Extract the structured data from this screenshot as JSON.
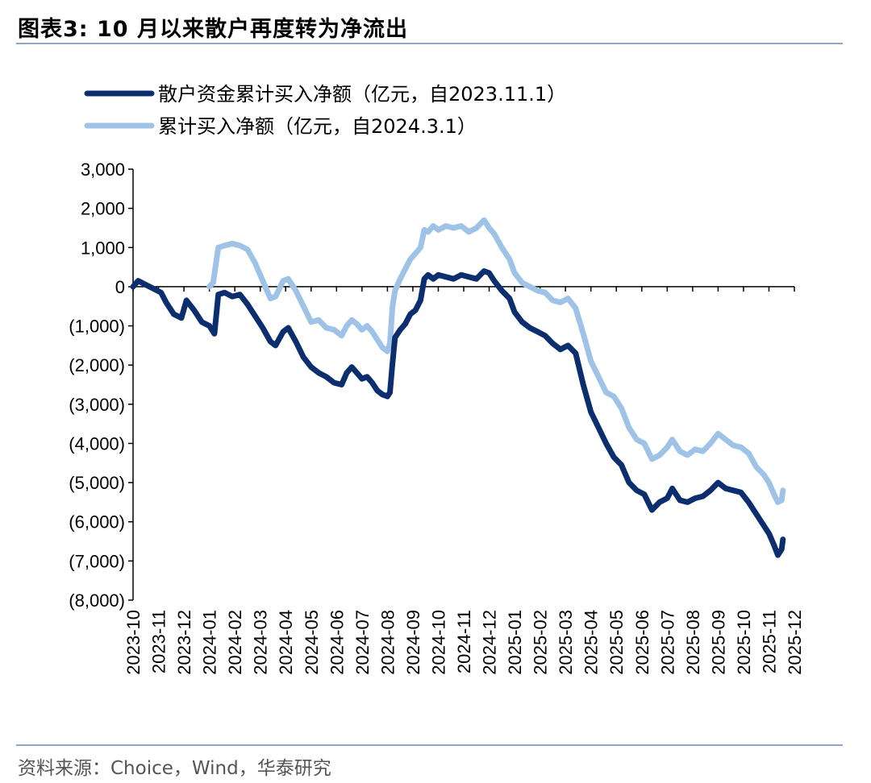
{
  "figure": {
    "title": "图表3:  10 月以来散户再度转为净流出",
    "source": "资料来源：Choice，Wind，华泰研究"
  },
  "colors": {
    "series_dark": "#0b2f6e",
    "series_light": "#9fc3e7",
    "rule": "#8fa9c4"
  },
  "chart_data": {
    "type": "line",
    "title": "",
    "xlabel": "",
    "ylabel": "",
    "ylim": [
      -8000,
      3000
    ],
    "yticks": [
      3000,
      2000,
      1000,
      0,
      -1000,
      -2000,
      -3000,
      -4000,
      -5000,
      -6000,
      -7000,
      -8000
    ],
    "ytick_labels": [
      "3,000",
      "2,000",
      "1,000",
      "0",
      "(1,000)",
      "(2,000)",
      "(3,000)",
      "(4,000)",
      "(5,000)",
      "(6,000)",
      "(7,000)",
      "(8,000)"
    ],
    "x_tick_labels": [
      "2023-10",
      "2023-11",
      "2023-12",
      "2024-01",
      "2024-02",
      "2024-03",
      "2024-04",
      "2024-05",
      "2024-06",
      "2024-07",
      "2024-08",
      "2024-09",
      "2024-10",
      "2024-11",
      "2024-12",
      "2025-01",
      "2025-02",
      "2025-03",
      "2025-04",
      "2025-05",
      "2025-06",
      "2025-07",
      "2025-08",
      "2025-09",
      "2025-10",
      "2025-11",
      "2025-12"
    ],
    "legend": {
      "position": "top-left"
    },
    "series": [
      {
        "name": "散户资金累计买入净额（亿元，自2023.11.1）",
        "color": "#0b2f6e",
        "points": [
          [
            0.0,
            0
          ],
          [
            0.2,
            150
          ],
          [
            0.5,
            50
          ],
          [
            0.8,
            -50
          ],
          [
            1.1,
            -150
          ],
          [
            1.3,
            -400
          ],
          [
            1.6,
            -700
          ],
          [
            1.9,
            -800
          ],
          [
            2.1,
            -350
          ],
          [
            2.4,
            -600
          ],
          [
            2.7,
            -900
          ],
          [
            3.0,
            -1000
          ],
          [
            3.2,
            -1200
          ],
          [
            3.35,
            -200
          ],
          [
            3.6,
            -150
          ],
          [
            3.9,
            -250
          ],
          [
            4.2,
            -200
          ],
          [
            4.5,
            -450
          ],
          [
            4.8,
            -750
          ],
          [
            5.1,
            -1050
          ],
          [
            5.4,
            -1400
          ],
          [
            5.6,
            -1500
          ],
          [
            5.9,
            -1150
          ],
          [
            6.1,
            -1050
          ],
          [
            6.4,
            -1400
          ],
          [
            6.7,
            -1800
          ],
          [
            7.0,
            -2050
          ],
          [
            7.3,
            -2200
          ],
          [
            7.6,
            -2300
          ],
          [
            7.9,
            -2450
          ],
          [
            8.2,
            -2500
          ],
          [
            8.4,
            -2200
          ],
          [
            8.6,
            -2050
          ],
          [
            8.8,
            -2200
          ],
          [
            9.0,
            -2350
          ],
          [
            9.2,
            -2300
          ],
          [
            9.4,
            -2450
          ],
          [
            9.6,
            -2650
          ],
          [
            9.8,
            -2750
          ],
          [
            10.0,
            -2800
          ],
          [
            10.1,
            -2700
          ],
          [
            10.2,
            -1950
          ],
          [
            10.3,
            -1300
          ],
          [
            10.5,
            -1100
          ],
          [
            10.7,
            -950
          ],
          [
            10.9,
            -700
          ],
          [
            11.1,
            -600
          ],
          [
            11.3,
            -350
          ],
          [
            11.45,
            200
          ],
          [
            11.6,
            300
          ],
          [
            11.8,
            200
          ],
          [
            12.0,
            300
          ],
          [
            12.3,
            250
          ],
          [
            12.6,
            200
          ],
          [
            12.9,
            300
          ],
          [
            13.2,
            250
          ],
          [
            13.5,
            200
          ],
          [
            13.8,
            400
          ],
          [
            14.0,
            350
          ],
          [
            14.2,
            150
          ],
          [
            14.5,
            -100
          ],
          [
            14.8,
            -300
          ],
          [
            15.0,
            -650
          ],
          [
            15.3,
            -900
          ],
          [
            15.6,
            -1050
          ],
          [
            15.9,
            -1150
          ],
          [
            16.2,
            -1250
          ],
          [
            16.5,
            -1450
          ],
          [
            16.8,
            -1600
          ],
          [
            17.1,
            -1500
          ],
          [
            17.4,
            -1700
          ],
          [
            17.7,
            -2500
          ],
          [
            18.0,
            -3200
          ],
          [
            18.3,
            -3600
          ],
          [
            18.6,
            -4000
          ],
          [
            18.9,
            -4350
          ],
          [
            19.2,
            -4550
          ],
          [
            19.5,
            -5000
          ],
          [
            19.8,
            -5200
          ],
          [
            20.1,
            -5300
          ],
          [
            20.4,
            -5700
          ],
          [
            20.7,
            -5500
          ],
          [
            21.0,
            -5400
          ],
          [
            21.2,
            -5150
          ],
          [
            21.5,
            -5450
          ],
          [
            21.8,
            -5500
          ],
          [
            22.1,
            -5400
          ],
          [
            22.4,
            -5350
          ],
          [
            22.7,
            -5200
          ],
          [
            23.0,
            -5000
          ],
          [
            23.3,
            -5150
          ],
          [
            23.6,
            -5200
          ],
          [
            23.9,
            -5250
          ],
          [
            24.2,
            -5500
          ],
          [
            24.5,
            -5800
          ],
          [
            24.8,
            -6100
          ],
          [
            25.0,
            -6300
          ],
          [
            25.2,
            -6600
          ],
          [
            25.35,
            -6850
          ],
          [
            25.5,
            -6700
          ],
          [
            25.55,
            -6450
          ]
        ]
      },
      {
        "name": "累计买入净额（亿元，自2024.3.1）",
        "color": "#9fc3e7",
        "points": [
          [
            3.0,
            0
          ],
          [
            3.15,
            100
          ],
          [
            3.35,
            1000
          ],
          [
            3.6,
            1050
          ],
          [
            3.9,
            1100
          ],
          [
            4.2,
            1050
          ],
          [
            4.5,
            950
          ],
          [
            4.8,
            600
          ],
          [
            5.1,
            150
          ],
          [
            5.4,
            -300
          ],
          [
            5.6,
            -250
          ],
          [
            5.9,
            150
          ],
          [
            6.1,
            200
          ],
          [
            6.4,
            -100
          ],
          [
            6.7,
            -500
          ],
          [
            7.0,
            -900
          ],
          [
            7.3,
            -850
          ],
          [
            7.6,
            -1050
          ],
          [
            7.9,
            -1100
          ],
          [
            8.2,
            -1250
          ],
          [
            8.4,
            -1000
          ],
          [
            8.6,
            -850
          ],
          [
            8.8,
            -950
          ],
          [
            9.0,
            -1100
          ],
          [
            9.2,
            -1000
          ],
          [
            9.4,
            -1150
          ],
          [
            9.6,
            -1350
          ],
          [
            9.8,
            -1550
          ],
          [
            10.0,
            -1650
          ],
          [
            10.1,
            -1450
          ],
          [
            10.2,
            -500
          ],
          [
            10.3,
            -100
          ],
          [
            10.5,
            200
          ],
          [
            10.7,
            450
          ],
          [
            10.9,
            700
          ],
          [
            11.1,
            850
          ],
          [
            11.3,
            1000
          ],
          [
            11.45,
            1450
          ],
          [
            11.6,
            1400
          ],
          [
            11.8,
            1550
          ],
          [
            12.0,
            1450
          ],
          [
            12.3,
            1550
          ],
          [
            12.6,
            1500
          ],
          [
            12.9,
            1550
          ],
          [
            13.2,
            1400
          ],
          [
            13.5,
            1500
          ],
          [
            13.8,
            1700
          ],
          [
            14.0,
            1500
          ],
          [
            14.2,
            1350
          ],
          [
            14.5,
            1000
          ],
          [
            14.8,
            700
          ],
          [
            15.0,
            350
          ],
          [
            15.3,
            100
          ],
          [
            15.6,
            0
          ],
          [
            15.9,
            -100
          ],
          [
            16.2,
            -150
          ],
          [
            16.5,
            -350
          ],
          [
            16.8,
            -400
          ],
          [
            17.1,
            -300
          ],
          [
            17.4,
            -550
          ],
          [
            17.7,
            -1200
          ],
          [
            18.0,
            -1900
          ],
          [
            18.3,
            -2300
          ],
          [
            18.6,
            -2700
          ],
          [
            18.9,
            -2800
          ],
          [
            19.2,
            -3100
          ],
          [
            19.5,
            -3600
          ],
          [
            19.8,
            -3900
          ],
          [
            20.1,
            -4000
          ],
          [
            20.4,
            -4400
          ],
          [
            20.7,
            -4300
          ],
          [
            21.0,
            -4100
          ],
          [
            21.2,
            -3900
          ],
          [
            21.5,
            -4200
          ],
          [
            21.8,
            -4300
          ],
          [
            22.1,
            -4150
          ],
          [
            22.4,
            -4200
          ],
          [
            22.7,
            -4000
          ],
          [
            23.0,
            -3750
          ],
          [
            23.3,
            -3900
          ],
          [
            23.6,
            -4050
          ],
          [
            23.9,
            -4100
          ],
          [
            24.2,
            -4250
          ],
          [
            24.5,
            -4600
          ],
          [
            24.8,
            -4800
          ],
          [
            25.0,
            -5000
          ],
          [
            25.2,
            -5300
          ],
          [
            25.35,
            -5500
          ],
          [
            25.5,
            -5450
          ],
          [
            25.55,
            -5200
          ]
        ]
      }
    ]
  }
}
